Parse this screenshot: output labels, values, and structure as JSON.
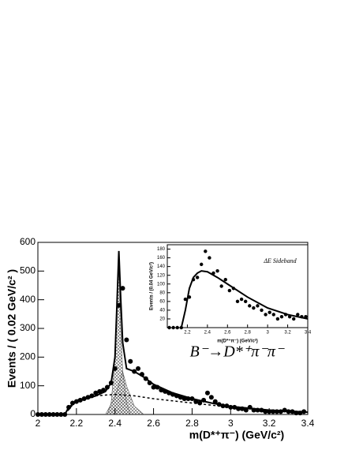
{
  "chart_data": [
    {
      "type": "scatter",
      "y_label": "Events / ( 0.02 GeV/c² )",
      "x_label": "m(D*⁺π⁻) (GeV/c²)",
      "annotation": "B⁻→D*⁺π⁻π⁻",
      "xlim": [
        2,
        3.4
      ],
      "ylim": [
        0,
        600
      ],
      "xticks": [
        2,
        2.2,
        2.4,
        2.6,
        2.8,
        3,
        3.2,
        3.4
      ],
      "yticks": [
        0,
        100,
        200,
        300,
        400,
        500,
        600
      ],
      "color": "#000000",
      "points": {
        "x": [
          2.0,
          2.02,
          2.04,
          2.06,
          2.08,
          2.1,
          2.12,
          2.14,
          2.16,
          2.18,
          2.2,
          2.22,
          2.24,
          2.26,
          2.28,
          2.3,
          2.32,
          2.34,
          2.36,
          2.38,
          2.4,
          2.42,
          2.44,
          2.46,
          2.48,
          2.5,
          2.52,
          2.54,
          2.56,
          2.58,
          2.6,
          2.62,
          2.64,
          2.66,
          2.68,
          2.7,
          2.72,
          2.74,
          2.76,
          2.78,
          2.8,
          2.82,
          2.84,
          2.86,
          2.88,
          2.9,
          2.92,
          2.94,
          2.96,
          2.98,
          3.0,
          3.02,
          3.04,
          3.06,
          3.08,
          3.1,
          3.12,
          3.14,
          3.16,
          3.18,
          3.2,
          3.22,
          3.24,
          3.26,
          3.28,
          3.3,
          3.32,
          3.34,
          3.36,
          3.38
        ],
        "values": [
          0,
          0,
          0,
          0,
          0,
          0,
          0,
          0,
          25,
          40,
          45,
          50,
          55,
          60,
          65,
          75,
          80,
          85,
          95,
          110,
          160,
          380,
          440,
          260,
          185,
          150,
          160,
          140,
          125,
          110,
          95,
          95,
          85,
          80,
          75,
          70,
          65,
          60,
          55,
          55,
          55,
          45,
          40,
          50,
          75,
          60,
          45,
          35,
          30,
          30,
          25,
          25,
          20,
          20,
          15,
          25,
          15,
          15,
          15,
          10,
          10,
          10,
          10,
          10,
          15,
          10,
          10,
          5,
          5,
          10
        ]
      },
      "curves": [
        {
          "style": "hatched",
          "x": [
            2.36,
            2.38,
            2.4,
            2.41,
            2.42,
            2.43,
            2.44,
            2.46,
            2.48
          ],
          "values": [
            0,
            40,
            200,
            400,
            500,
            300,
            150,
            40,
            0
          ]
        },
        {
          "style": "hatched",
          "x": [
            2.35,
            2.4,
            2.44,
            2.46,
            2.5,
            2.55
          ],
          "values": [
            0,
            60,
            150,
            100,
            30,
            0
          ]
        },
        {
          "style": "dashed",
          "x": [
            2.14,
            2.2,
            2.3,
            2.4,
            2.5,
            2.6,
            2.8,
            3.0,
            3.2,
            3.4
          ],
          "values": [
            0,
            50,
            65,
            70,
            65,
            55,
            40,
            25,
            15,
            8
          ]
        },
        {
          "style": "solid",
          "x": [
            2.14,
            2.16,
            2.2,
            2.25,
            2.3,
            2.35,
            2.38,
            2.4,
            2.41,
            2.42,
            2.43,
            2.44,
            2.46,
            2.5,
            2.55,
            2.6,
            2.7,
            2.8,
            2.9,
            3.0,
            3.2,
            3.4
          ],
          "values": [
            0,
            25,
            45,
            55,
            65,
            80,
            110,
            200,
            380,
            570,
            400,
            250,
            160,
            150,
            130,
            105,
            75,
            55,
            40,
            28,
            15,
            8
          ]
        }
      ]
    },
    {
      "type": "scatter",
      "y_label": "Events / (0.04 GeV/c²)",
      "x_label": "m(D*⁺π⁻) (GeV/c²)",
      "annotation": "ΔE Sideband",
      "xlim": [
        2,
        3.4
      ],
      "ylim": [
        0,
        190
      ],
      "xticks": [
        2.2,
        2.4,
        2.6,
        2.8,
        3,
        3.2,
        3.4
      ],
      "yticks": [
        20,
        40,
        60,
        80,
        100,
        120,
        140,
        160,
        180
      ],
      "color": "#000000",
      "points": {
        "x": [
          2.02,
          2.06,
          2.1,
          2.14,
          2.18,
          2.22,
          2.26,
          2.3,
          2.34,
          2.38,
          2.42,
          2.46,
          2.5,
          2.54,
          2.58,
          2.62,
          2.66,
          2.7,
          2.74,
          2.78,
          2.82,
          2.86,
          2.9,
          2.94,
          2.98,
          3.02,
          3.06,
          3.1,
          3.14,
          3.18,
          3.22,
          3.26,
          3.3,
          3.34,
          3.38
        ],
        "values": [
          0,
          0,
          0,
          0,
          65,
          70,
          110,
          115,
          145,
          175,
          160,
          125,
          130,
          95,
          110,
          85,
          90,
          60,
          65,
          60,
          50,
          45,
          50,
          40,
          30,
          35,
          30,
          20,
          25,
          30,
          25,
          20,
          30,
          25,
          25
        ]
      },
      "curves": [
        {
          "style": "solid",
          "x": [
            2.14,
            2.18,
            2.22,
            2.26,
            2.3,
            2.34,
            2.4,
            2.5,
            2.6,
            2.8,
            3.0,
            3.2,
            3.4
          ],
          "values": [
            0,
            40,
            90,
            115,
            125,
            130,
            128,
            115,
            100,
            70,
            45,
            30,
            20
          ]
        }
      ]
    }
  ]
}
